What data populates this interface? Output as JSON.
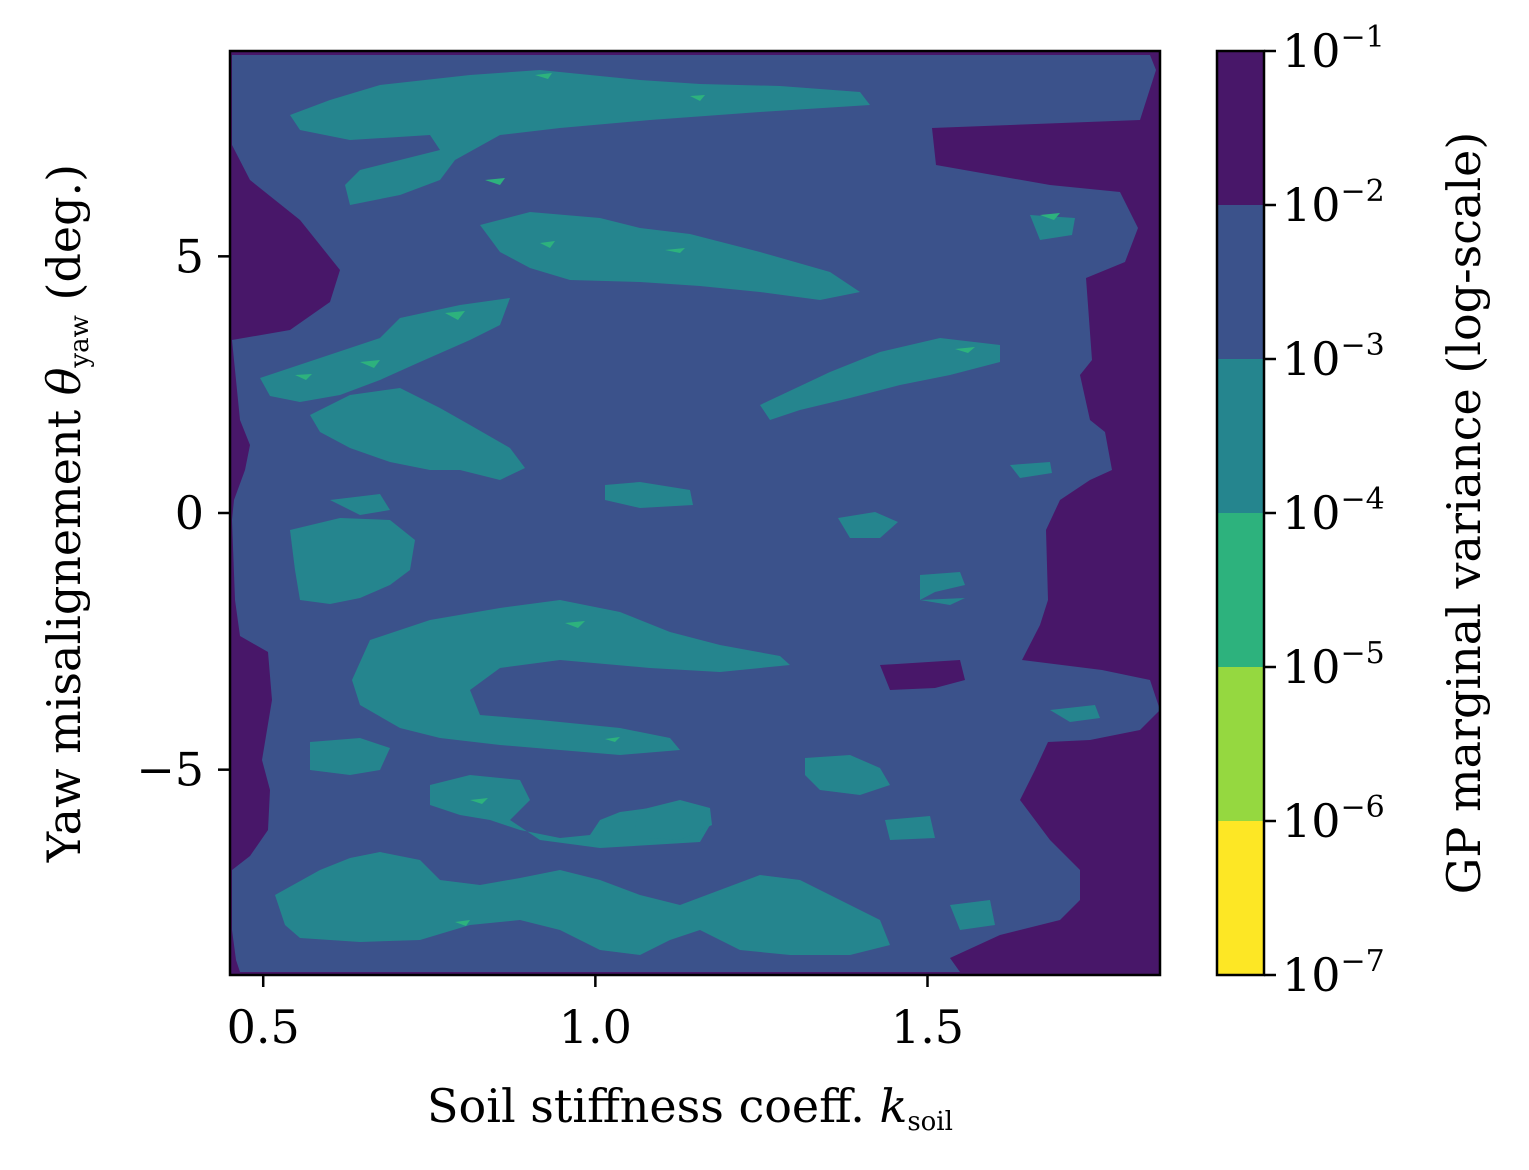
{
  "chart_data": {
    "type": "heatmap",
    "subtype": "filled-contour",
    "xlabel": {
      "main": "Soil stiffness coeff. ",
      "var": "k",
      "sub": "soil"
    },
    "ylabel": {
      "main": "Yaw misalignement ",
      "var": "θ",
      "sub": "yaw",
      "unit": " (deg.)"
    },
    "xlim": [
      0.45,
      1.85
    ],
    "ylim": [
      -9,
      9
    ],
    "xticks": [
      {
        "value": 0.5,
        "label": "0.5"
      },
      {
        "value": 1.0,
        "label": "1.0"
      },
      {
        "value": 1.5,
        "label": "1.5"
      }
    ],
    "yticks": [
      {
        "value": 5,
        "label": "5"
      },
      {
        "value": 0,
        "label": "0"
      },
      {
        "value": -5,
        "label": "−5"
      }
    ],
    "colorbar": {
      "label": "GP marginal variance (log-scale)",
      "scale": "log",
      "levels": [
        {
          "exp": "−7",
          "value": 1e-07
        },
        {
          "exp": "−6",
          "value": 1e-06
        },
        {
          "exp": "−5",
          "value": 1e-05
        },
        {
          "exp": "−4",
          "value": 0.0001
        },
        {
          "exp": "−3",
          "value": 0.001
        },
        {
          "exp": "−2",
          "value": 0.01
        },
        {
          "exp": "−1",
          "value": 0.1
        }
      ],
      "band_colors": [
        "#fde725",
        "#95d840",
        "#2db27d",
        "#25858e",
        "#3b528b",
        "#481769"
      ]
    },
    "regions": {
      "edges_high_variance": "1e-2 to 1e-1",
      "interior_background": "1e-3 to 1e-2",
      "bands": "1e-4 to 1e-3",
      "small_spots": "1e-5 to 1e-4"
    }
  }
}
